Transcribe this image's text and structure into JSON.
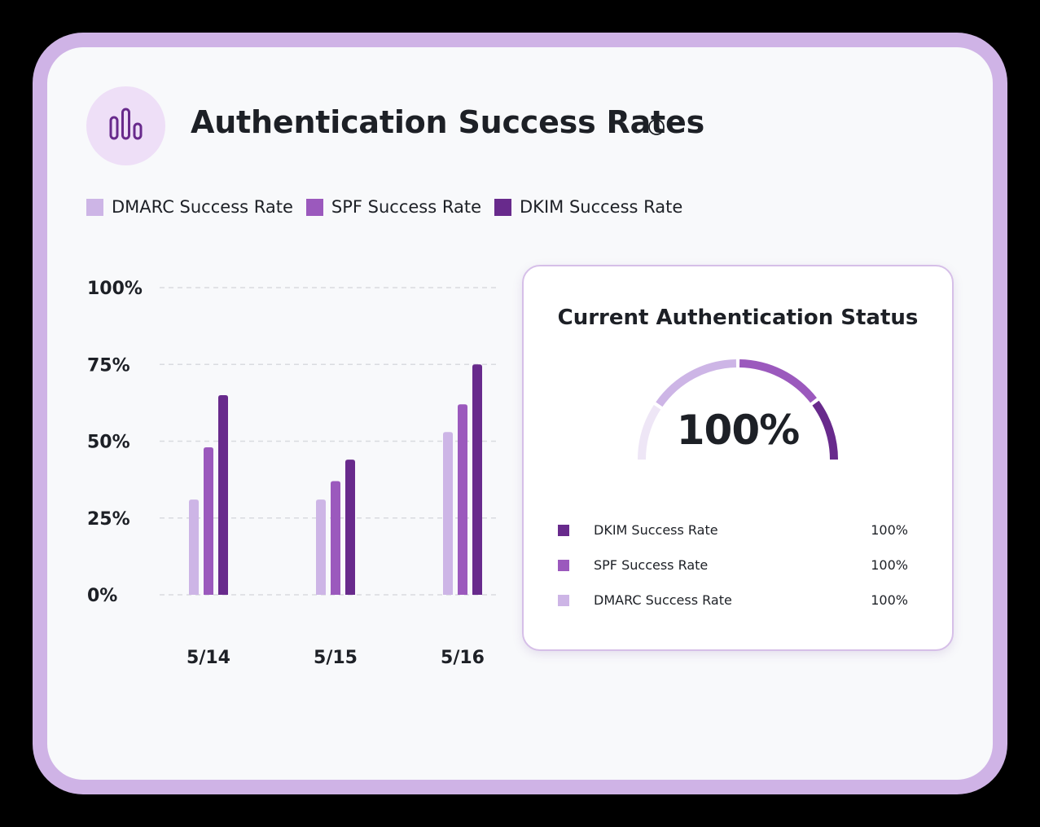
{
  "header": {
    "title": "Authentication Success Rates",
    "icon": "bar-chart-icon",
    "info_icon": "info-icon"
  },
  "colors": {
    "dmarc": "#cdb5e6",
    "spf": "#9b59bd",
    "dkim": "#682a8c",
    "track": "#eee6f6"
  },
  "legend": [
    {
      "label": "DMARC Success Rate",
      "color": "#cdb5e6"
    },
    {
      "label": "SPF Success Rate",
      "color": "#9b59bd"
    },
    {
      "label": "DKIM Success Rate",
      "color": "#682a8c"
    }
  ],
  "chart_data": {
    "type": "bar",
    "categories": [
      "5/14",
      "5/15",
      "5/16"
    ],
    "series": [
      {
        "name": "DMARC Success Rate",
        "color": "#cdb5e6",
        "values": [
          31,
          31,
          53
        ]
      },
      {
        "name": "SPF Success Rate",
        "color": "#9b59bd",
        "values": [
          48,
          37,
          62
        ]
      },
      {
        "name": "DKIM Success Rate",
        "color": "#682a8c",
        "values": [
          65,
          44,
          75
        ]
      }
    ],
    "yticks": [
      "0%",
      "25%",
      "50%",
      "75%",
      "100%"
    ],
    "ylim": [
      0,
      100
    ],
    "grid": true,
    "legend_position": "top"
  },
  "status": {
    "title": "Current Authentication Status",
    "gauge_value": "100%",
    "rows": [
      {
        "label": "DKIM Success Rate",
        "value": "100%",
        "color": "#682a8c"
      },
      {
        "label": "SPF Success Rate",
        "value": "100%",
        "color": "#9b59bd"
      },
      {
        "label": "DMARC Success Rate",
        "value": "100%",
        "color": "#cdb5e6"
      }
    ]
  }
}
